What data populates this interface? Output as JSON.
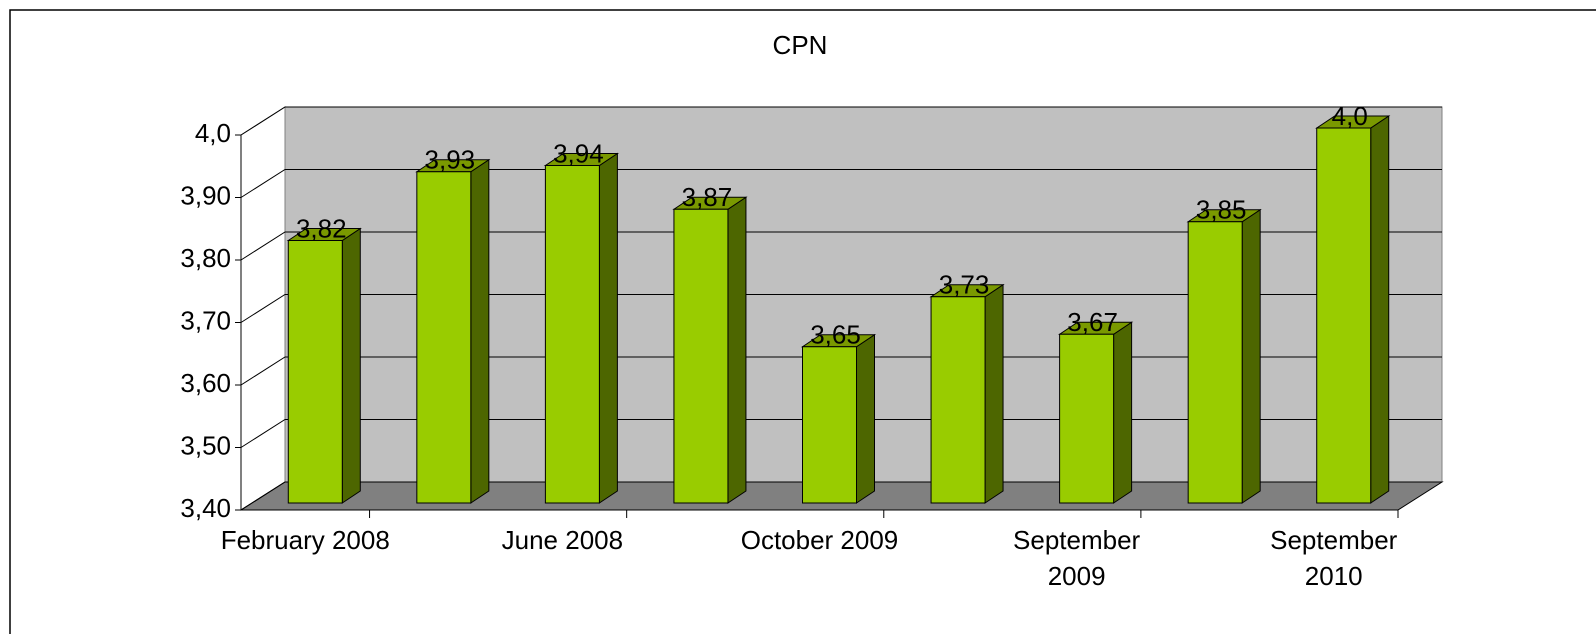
{
  "chart_data": {
    "type": "bar",
    "title": "CPN",
    "categories": [
      "February 2008",
      null,
      "June 2008",
      null,
      "October 2009",
      null,
      "September 2009",
      null,
      "September 2010"
    ],
    "values": [
      3.82,
      3.93,
      3.94,
      3.87,
      3.65,
      3.73,
      3.67,
      3.85,
      4.0
    ],
    "value_labels": [
      "3,82",
      "3,93",
      "3,94",
      "3,87",
      "3,65",
      "3,73",
      "3,67",
      "3,85",
      "4,0"
    ],
    "color": "#99cc00",
    "ylim": [
      3.4,
      4.0
    ],
    "yticks": [
      {
        "value": 3.4,
        "label": "3,40"
      },
      {
        "value": 3.5,
        "label": "3,50"
      },
      {
        "value": 3.6,
        "label": "3,60"
      },
      {
        "value": 3.7,
        "label": "3,70"
      },
      {
        "value": 3.8,
        "label": "3,80"
      },
      {
        "value": 3.9,
        "label": "3,90"
      },
      {
        "value": 4.0,
        "label": "4,0"
      }
    ],
    "grid": true
  }
}
